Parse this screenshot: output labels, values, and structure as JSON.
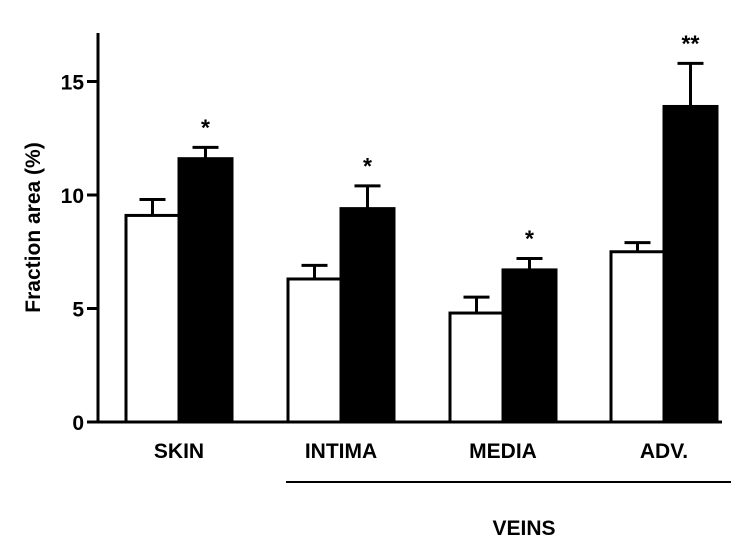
{
  "chart_data": {
    "type": "bar",
    "title": "",
    "xlabel": "",
    "ylabel": "Fraction area (%)",
    "ylim": [
      0,
      17
    ],
    "yticks": [
      0,
      5,
      10,
      15
    ],
    "categories": [
      "SKIN",
      "INTIMA",
      "MEDIA",
      "ADV."
    ],
    "series": [
      {
        "color": "#ffffff",
        "values": [
          9.1,
          6.3,
          4.8,
          7.5
        ],
        "errors": [
          0.7,
          0.6,
          0.7,
          0.4
        ]
      },
      {
        "color": "#000000",
        "values": [
          11.6,
          9.4,
          6.7,
          13.9
        ],
        "errors": [
          0.5,
          1.0,
          0.5,
          1.9
        ]
      }
    ],
    "significance": [
      "*",
      "*",
      "*",
      "**"
    ],
    "group_label": "VEINS",
    "group_span": [
      "INTIMA",
      "ADV."
    ],
    "grid": false,
    "legend": "none"
  }
}
